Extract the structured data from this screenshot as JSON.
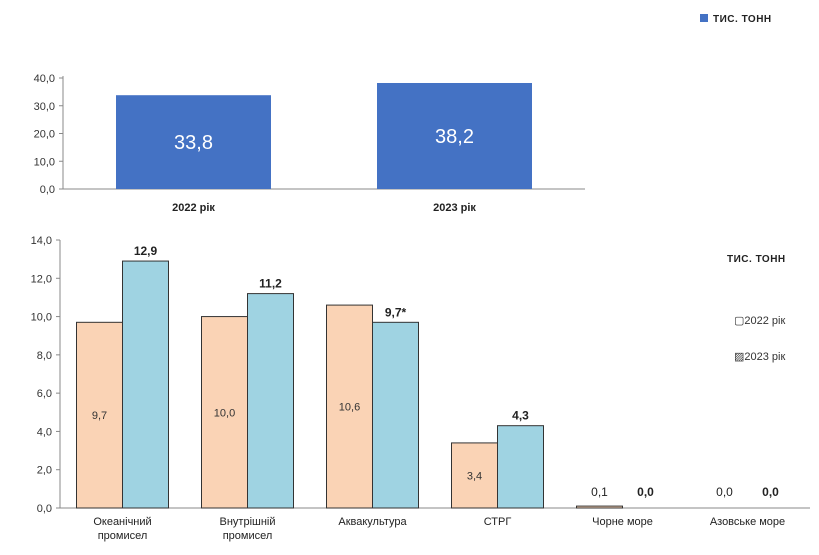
{
  "chart_data": [
    {
      "type": "bar",
      "unit_label": "ТИС. ТОНН",
      "categories": [
        "2022 рік",
        "2023 рік"
      ],
      "values": [
        33.8,
        38.2
      ],
      "value_labels": [
        "33,8",
        "38,2"
      ],
      "ylim": [
        0,
        40
      ],
      "yticks": [
        "0,0",
        "10,0",
        "20,0",
        "30,0",
        "40,0"
      ],
      "colors": {
        "bar": "#4472C4",
        "legend_marker": "#4472C4"
      }
    },
    {
      "type": "bar",
      "unit_label": "ТИС. ТОНН",
      "categories": [
        "Океанічний промисел",
        "Внутрішній промисел",
        "Аквакультура",
        "СТРГ",
        "Чорне море",
        "Азовське море"
      ],
      "category_lines": [
        [
          "Океанічний",
          "промисел"
        ],
        [
          "Внутрішній",
          "промисел"
        ],
        [
          "Аквакультура"
        ],
        [
          "СТРГ"
        ],
        [
          "Чорне море"
        ],
        [
          "Азовське море"
        ]
      ],
      "ylim": [
        0,
        14
      ],
      "yticks": [
        "0,0",
        "2,0",
        "4,0",
        "6,0",
        "8,0",
        "10,0",
        "12,0",
        "14,0"
      ],
      "series": [
        {
          "name": "2022 рік",
          "legend_label": "▢2022 рік",
          "values": [
            9.7,
            10.0,
            10.6,
            3.4,
            0.1,
            0.0
          ],
          "labels": [
            "9,7",
            "10,0",
            "10,6",
            "3,4",
            "0,1",
            "0,0"
          ],
          "color": "#FAD3B5"
        },
        {
          "name": "2023 рік",
          "legend_label": "▨2023 рік",
          "values": [
            12.9,
            11.2,
            9.7,
            4.3,
            0.0,
            0.0
          ],
          "labels": [
            "12,9",
            "11,2",
            "9,7*",
            "4,3",
            "0,0",
            "0,0"
          ],
          "color": "#9FD3E2"
        }
      ]
    }
  ]
}
